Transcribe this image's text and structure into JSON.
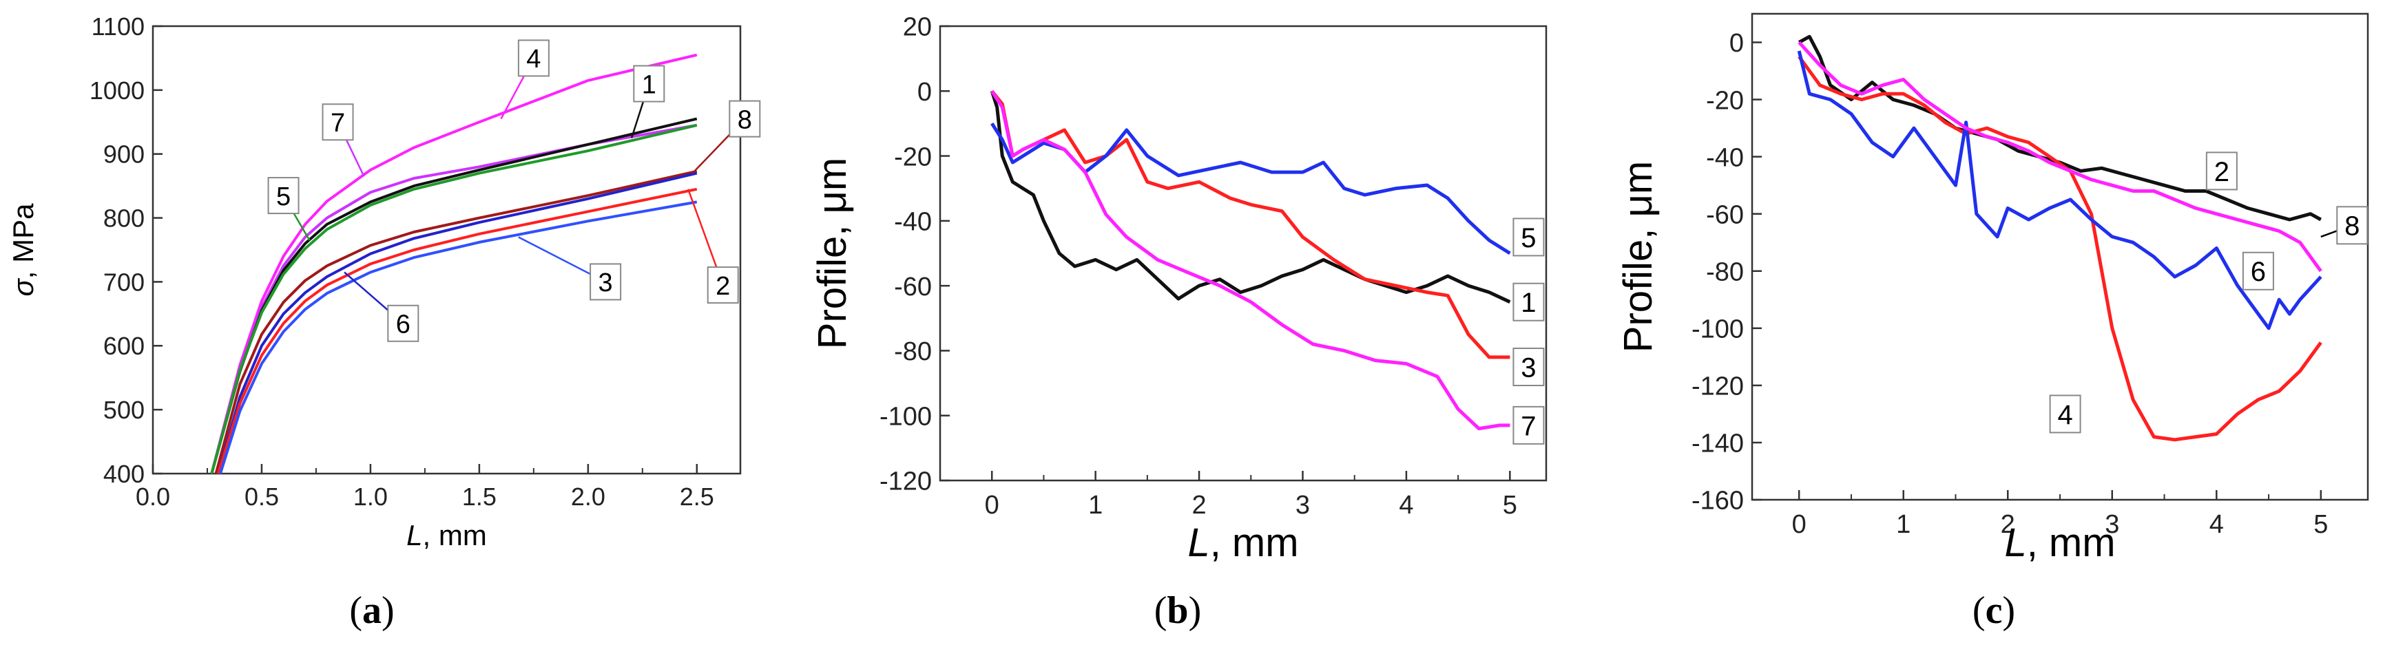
{
  "chart_data": [
    {
      "type": "line",
      "panel": "a",
      "caption": "(a)",
      "xlabel_italic": "L",
      "xlabel_rest": ", mm",
      "ylabel_italic": "σ",
      "ylabel_rest": ", MPa",
      "xlim": [
        0,
        2.7
      ],
      "ylim": [
        400,
        1100
      ],
      "xticks": [
        0.0,
        0.5,
        1.0,
        1.5,
        2.0,
        2.5
      ],
      "xtick_labels": [
        "0.0",
        "0.5",
        "1.0",
        "1.5",
        "2.0",
        "2.5"
      ],
      "yticks": [
        400,
        500,
        600,
        700,
        800,
        900,
        1000,
        1100
      ],
      "ytick_labels": [
        "400",
        "500",
        "600",
        "700",
        "800",
        "900",
        "1000",
        "1100"
      ],
      "series": [
        {
          "name": "4",
          "color": "#ff22ff",
          "x": [
            0.27,
            0.4,
            0.5,
            0.6,
            0.7,
            0.8,
            1.0,
            1.2,
            1.5,
            2.0,
            2.5
          ],
          "y": [
            400,
            570,
            670,
            740,
            790,
            826,
            875,
            910,
            950,
            1015,
            1055
          ]
        },
        {
          "name": "7",
          "color": "#cc33ff",
          "x": [
            0.27,
            0.4,
            0.5,
            0.6,
            0.7,
            0.8,
            1.0,
            1.2,
            1.5,
            2.0,
            2.5
          ],
          "y": [
            400,
            565,
            660,
            725,
            770,
            800,
            840,
            862,
            880,
            915,
            945
          ]
        },
        {
          "name": "1",
          "color": "#111111",
          "x": [
            0.27,
            0.4,
            0.5,
            0.6,
            0.7,
            0.8,
            1.0,
            1.2,
            1.5,
            2.0,
            2.5
          ],
          "y": [
            400,
            560,
            655,
            718,
            760,
            790,
            825,
            850,
            875,
            915,
            955
          ]
        },
        {
          "name": "5",
          "color": "#1f9a2a",
          "x": [
            0.27,
            0.4,
            0.5,
            0.6,
            0.7,
            0.8,
            1.0,
            1.2,
            1.5,
            2.0,
            2.5
          ],
          "y": [
            400,
            562,
            652,
            712,
            752,
            782,
            820,
            845,
            870,
            905,
            945
          ]
        },
        {
          "name": "8",
          "color": "#a01a1a",
          "x": [
            0.29,
            0.4,
            0.5,
            0.6,
            0.7,
            0.8,
            1.0,
            1.2,
            1.5,
            2.0,
            2.5
          ],
          "y": [
            400,
            540,
            618,
            668,
            702,
            725,
            757,
            778,
            800,
            835,
            873
          ]
        },
        {
          "name": "6",
          "color": "#2222cc",
          "x": [
            0.3,
            0.4,
            0.5,
            0.6,
            0.7,
            0.8,
            1.0,
            1.2,
            1.5,
            2.0,
            2.5
          ],
          "y": [
            400,
            520,
            600,
            650,
            683,
            708,
            744,
            768,
            793,
            830,
            870
          ]
        },
        {
          "name": "2",
          "color": "#ff2020",
          "x": [
            0.3,
            0.4,
            0.5,
            0.6,
            0.7,
            0.8,
            1.0,
            1.2,
            1.5,
            2.0,
            2.5
          ],
          "y": [
            400,
            510,
            585,
            635,
            670,
            695,
            728,
            750,
            775,
            810,
            845
          ]
        },
        {
          "name": "3",
          "color": "#3050ff",
          "x": [
            0.31,
            0.4,
            0.5,
            0.6,
            0.7,
            0.8,
            1.0,
            1.2,
            1.5,
            2.0,
            2.5
          ],
          "y": [
            400,
            498,
            572,
            622,
            657,
            682,
            715,
            738,
            762,
            795,
            825
          ]
        }
      ],
      "annotations": [
        {
          "text": "1",
          "x": 2.28,
          "y": 1010,
          "line_to": [
            2.2,
            925
          ],
          "line_color": "#111111"
        },
        {
          "text": "2",
          "x": 2.62,
          "y": 695,
          "line_to": [
            2.46,
            845
          ],
          "line_color": "#ff2020"
        },
        {
          "text": "3",
          "x": 2.08,
          "y": 700,
          "line_to": [
            1.68,
            770
          ],
          "line_color": "#3050ff"
        },
        {
          "text": "4",
          "x": 1.75,
          "y": 1050,
          "line_to": [
            1.6,
            955
          ],
          "line_color": "#ff22ff"
        },
        {
          "text": "5",
          "x": 0.6,
          "y": 835,
          "line_to": [
            0.72,
            765
          ],
          "line_color": "#1f9a2a"
        },
        {
          "text": "6",
          "x": 1.15,
          "y": 635,
          "line_to": [
            0.88,
            715
          ],
          "line_color": "#2222cc"
        },
        {
          "text": "7",
          "x": 0.85,
          "y": 950,
          "line_to": [
            0.97,
            865
          ],
          "line_color": "#cc33ff"
        },
        {
          "text": "8",
          "x": 2.72,
          "y": 955,
          "line_to": [
            2.48,
            870
          ],
          "line_color": "#a01a1a"
        }
      ]
    },
    {
      "type": "line",
      "panel": "b",
      "caption": "(b)",
      "xlabel_italic": "L",
      "xlabel_rest": ", mm",
      "ylabel_text": "Profile, μm",
      "xlim": [
        -0.5,
        5.35
      ],
      "ylim": [
        -120,
        20
      ],
      "xticks": [
        0,
        1,
        2,
        3,
        4,
        5
      ],
      "xtick_labels": [
        "0",
        "1",
        "2",
        "3",
        "4",
        "5"
      ],
      "yticks": [
        -120,
        -100,
        -80,
        -60,
        -40,
        -20,
        0,
        20
      ],
      "ytick_labels": [
        "-120",
        "-100",
        "-80",
        "-60",
        "-40",
        "-20",
        "0",
        "20"
      ],
      "series": [
        {
          "name": "1",
          "color": "#111111",
          "x": [
            0,
            0.05,
            0.1,
            0.2,
            0.3,
            0.4,
            0.5,
            0.65,
            0.8,
            1.0,
            1.2,
            1.4,
            1.6,
            1.8,
            2.0,
            2.2,
            2.4,
            2.6,
            2.8,
            3.0,
            3.2,
            3.4,
            3.6,
            3.8,
            4.0,
            4.2,
            4.4,
            4.6,
            4.8,
            5.0
          ],
          "y": [
            0,
            -5,
            -20,
            -28,
            -30,
            -32,
            -40,
            -50,
            -54,
            -52,
            -55,
            -52,
            -58,
            -64,
            -60,
            -58,
            -62,
            -60,
            -57,
            -55,
            -52,
            -55,
            -58,
            -60,
            -62,
            -60,
            -57,
            -60,
            -62,
            -65
          ]
        },
        {
          "name": "3",
          "color": "#ff2020",
          "x": [
            0,
            0.1,
            0.2,
            0.3,
            0.5,
            0.7,
            0.9,
            1.1,
            1.3,
            1.5,
            1.7,
            2.0,
            2.3,
            2.5,
            2.8,
            3.0,
            3.3,
            3.6,
            3.9,
            4.2,
            4.4,
            4.6,
            4.8,
            5.0
          ],
          "y": [
            0,
            -4,
            -20,
            -18,
            -15,
            -12,
            -22,
            -20,
            -15,
            -28,
            -30,
            -28,
            -33,
            -35,
            -37,
            -45,
            -52,
            -58,
            -60,
            -62,
            -63,
            -75,
            -82,
            -82
          ]
        },
        {
          "name": "5",
          "color": "#2030ee",
          "x": [
            0,
            0.1,
            0.2,
            0.3,
            0.5,
            0.7,
            0.9,
            1.1,
            1.3,
            1.5,
            1.8,
            2.1,
            2.4,
            2.7,
            3.0,
            3.2,
            3.4,
            3.6,
            3.9,
            4.2,
            4.4,
            4.6,
            4.8,
            5.0
          ],
          "y": [
            -10,
            -15,
            -22,
            -20,
            -16,
            -18,
            -25,
            -20,
            -12,
            -20,
            -26,
            -24,
            -22,
            -25,
            -25,
            -22,
            -30,
            -32,
            -30,
            -29,
            -33,
            -40,
            -46,
            -50
          ]
        },
        {
          "name": "7",
          "color": "#ff22ff",
          "x": [
            0,
            0.1,
            0.2,
            0.3,
            0.5,
            0.7,
            0.9,
            1.1,
            1.3,
            1.6,
            1.9,
            2.2,
            2.5,
            2.8,
            3.1,
            3.4,
            3.7,
            4.0,
            4.3,
            4.5,
            4.7,
            4.9,
            5.0
          ],
          "y": [
            0,
            -5,
            -20,
            -18,
            -15,
            -18,
            -25,
            -38,
            -45,
            -52,
            -56,
            -60,
            -65,
            -72,
            -78,
            -80,
            -83,
            -84,
            -88,
            -98,
            -104,
            -103,
            -103
          ]
        }
      ],
      "labels": [
        {
          "text": "1",
          "x": 5.18,
          "y": -65
        },
        {
          "text": "3",
          "x": 5.18,
          "y": -85
        },
        {
          "text": "5",
          "x": 5.18,
          "y": -45
        },
        {
          "text": "7",
          "x": 5.18,
          "y": -103
        }
      ]
    },
    {
      "type": "line",
      "panel": "c",
      "caption": "(c)",
      "xlabel_italic": "L",
      "xlabel_rest": ", mm",
      "ylabel_text": "Profile, μm",
      "xlim": [
        -0.45,
        5.45
      ],
      "ylim": [
        -160,
        10
      ],
      "xticks": [
        0,
        1,
        2,
        3,
        4,
        5
      ],
      "xtick_labels": [
        "0",
        "1",
        "2",
        "3",
        "4",
        "5"
      ],
      "yticks": [
        -160,
        -140,
        -120,
        -100,
        -80,
        -60,
        -40,
        -20,
        0
      ],
      "ytick_labels": [
        "-160",
        "-140",
        "-120",
        "-100",
        "-80",
        "-60",
        "-40",
        "-20",
        "0"
      ],
      "series": [
        {
          "name": "2",
          "color": "#111111",
          "x": [
            0,
            0.1,
            0.2,
            0.3,
            0.5,
            0.7,
            0.9,
            1.1,
            1.3,
            1.5,
            1.7,
            1.9,
            2.1,
            2.3,
            2.5,
            2.7,
            2.9,
            3.1,
            3.3,
            3.5,
            3.7,
            3.9,
            4.1,
            4.3,
            4.5,
            4.7,
            4.9,
            5.0
          ],
          "y": [
            0,
            2,
            -5,
            -15,
            -20,
            -14,
            -20,
            -22,
            -25,
            -30,
            -32,
            -34,
            -38,
            -40,
            -42,
            -45,
            -44,
            -46,
            -48,
            -50,
            -52,
            -52,
            -55,
            -58,
            -60,
            -62,
            -60,
            -62
          ]
        },
        {
          "name": "4",
          "color": "#ff2020",
          "x": [
            0,
            0.2,
            0.4,
            0.6,
            0.8,
            1.0,
            1.2,
            1.4,
            1.6,
            1.8,
            2.0,
            2.2,
            2.4,
            2.6,
            2.8,
            3.0,
            3.2,
            3.4,
            3.6,
            3.8,
            4.0,
            4.2,
            4.4,
            4.6,
            4.8,
            5.0
          ],
          "y": [
            -5,
            -15,
            -18,
            -20,
            -18,
            -18,
            -22,
            -28,
            -32,
            -30,
            -33,
            -35,
            -40,
            -45,
            -60,
            -100,
            -125,
            -138,
            -139,
            -138,
            -137,
            -130,
            -125,
            -122,
            -115,
            -105
          ]
        },
        {
          "name": "6",
          "color": "#2030ee",
          "x": [
            0,
            0.1,
            0.3,
            0.5,
            0.7,
            0.9,
            1.1,
            1.3,
            1.5,
            1.6,
            1.7,
            1.9,
            2.0,
            2.2,
            2.4,
            2.6,
            2.8,
            3.0,
            3.2,
            3.4,
            3.6,
            3.8,
            4.0,
            4.2,
            4.4,
            4.5,
            4.6,
            4.7,
            4.8,
            5.0
          ],
          "y": [
            -3,
            -18,
            -20,
            -25,
            -35,
            -40,
            -30,
            -40,
            -50,
            -28,
            -60,
            -68,
            -58,
            -62,
            -58,
            -55,
            -62,
            -68,
            -70,
            -75,
            -82,
            -78,
            -72,
            -85,
            -95,
            -100,
            -90,
            -95,
            -90,
            -82
          ]
        },
        {
          "name": "8",
          "color": "#ff22ff",
          "x": [
            0,
            0.2,
            0.4,
            0.6,
            0.8,
            1.0,
            1.2,
            1.4,
            1.6,
            1.8,
            2.0,
            2.2,
            2.4,
            2.6,
            2.8,
            3.0,
            3.2,
            3.4,
            3.6,
            3.8,
            4.0,
            4.2,
            4.4,
            4.6,
            4.8,
            5.0
          ],
          "y": [
            0,
            -8,
            -15,
            -18,
            -15,
            -13,
            -20,
            -25,
            -30,
            -33,
            -35,
            -38,
            -42,
            -45,
            -48,
            -50,
            -52,
            -52,
            -55,
            -58,
            -60,
            -62,
            -64,
            -66,
            -70,
            -80
          ]
        }
      ],
      "labels": [
        {
          "text": "2",
          "x": 4.05,
          "y": -45,
          "line_to": null
        },
        {
          "text": "4",
          "x": 2.55,
          "y": -130,
          "line_to": null
        },
        {
          "text": "6",
          "x": 4.4,
          "y": -80,
          "line_to": null
        },
        {
          "text": "8",
          "x": 5.3,
          "y": -64,
          "line_to": [
            5.0,
            -68
          ]
        }
      ]
    }
  ]
}
